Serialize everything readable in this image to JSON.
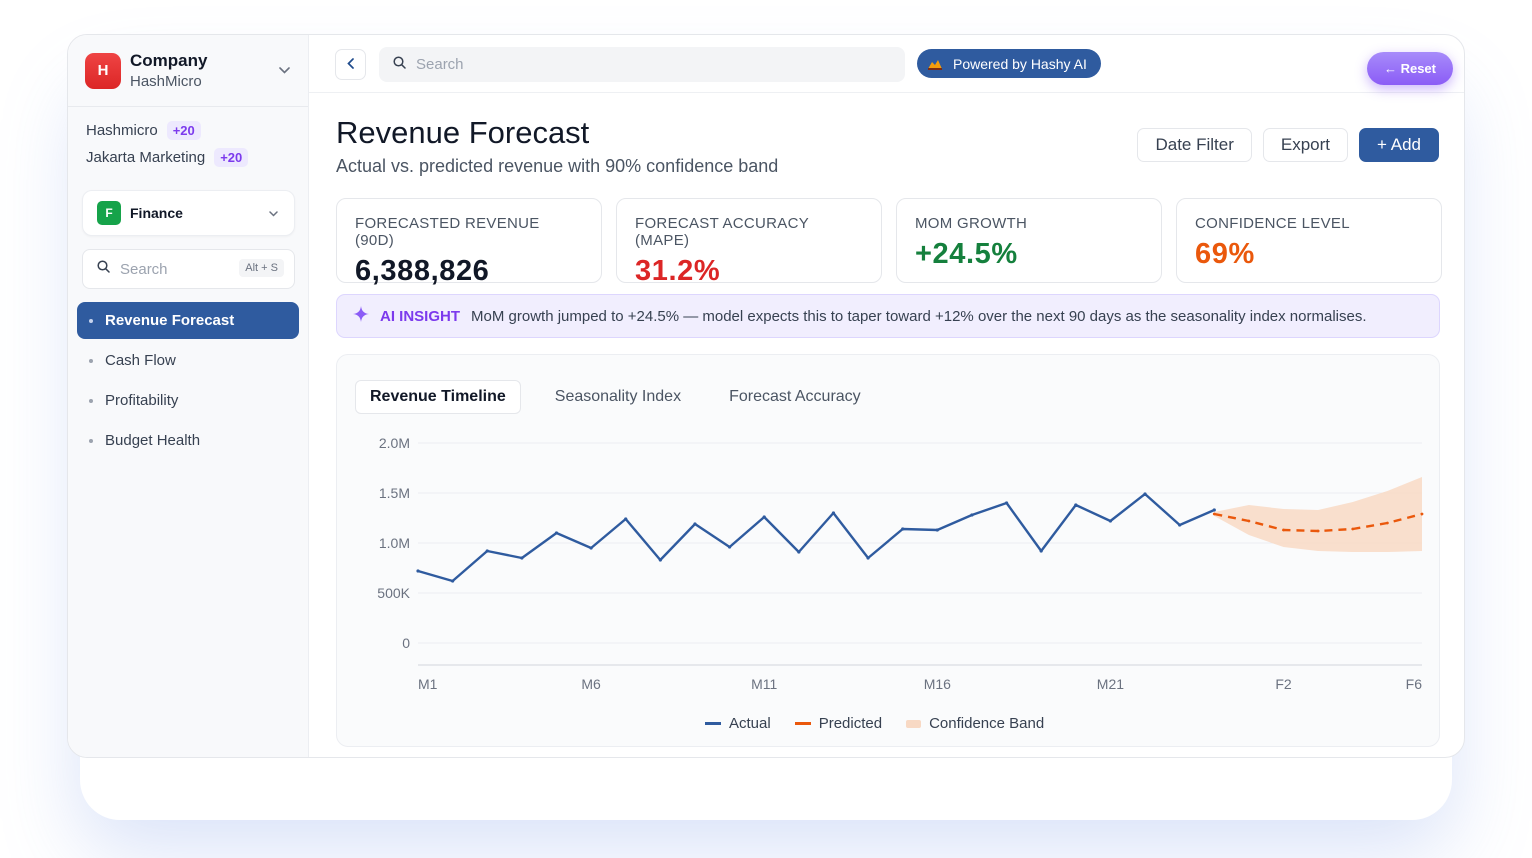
{
  "company": {
    "name": "Company",
    "sub": "HashMicro",
    "logo_letter": "H"
  },
  "orgs": [
    {
      "name": "Hashmicro",
      "badge": "+20"
    },
    {
      "name": "Jakarta Marketing",
      "badge": "+20"
    }
  ],
  "module": {
    "letter": "F",
    "label": "Finance"
  },
  "sidebar_search": {
    "placeholder": "Search",
    "shortcut": "Alt + S"
  },
  "nav": [
    {
      "label": "Revenue Forecast",
      "active": true
    },
    {
      "label": "Cash Flow",
      "active": false
    },
    {
      "label": "Profitability",
      "active": false
    },
    {
      "label": "Budget Health",
      "active": false
    }
  ],
  "topbar": {
    "search_placeholder": "Search",
    "powered": "Powered by Hashy AI",
    "reset": "← Reset"
  },
  "page": {
    "title": "Revenue Forecast",
    "subtitle": "Actual vs. predicted revenue with 90% confidence band",
    "actions": {
      "date_filter": "Date Filter",
      "export": "Export",
      "add": "+ Add"
    }
  },
  "kpis": [
    {
      "label": "FORECASTED REVENUE (90D)",
      "value": "6,388,826",
      "color": "#111827"
    },
    {
      "label": "FORECAST ACCURACY (MAPE)",
      "value": "31.2%",
      "color": "#dc2626"
    },
    {
      "label": "MOM GROWTH",
      "value": "+24.5%",
      "color": "#15803d"
    },
    {
      "label": "CONFIDENCE LEVEL",
      "value": "69%",
      "color": "#ea580c"
    }
  ],
  "insight": {
    "label": "AI INSIGHT",
    "text": "MoM growth jumped to +24.5% — model expects this to taper toward +12% over the next 90 days as the seasonality index normalises."
  },
  "chart_tabs": [
    "Revenue Timeline",
    "Seasonality Index",
    "Forecast Accuracy"
  ],
  "chart_data": {
    "type": "line",
    "ylim": [
      0,
      2000000
    ],
    "y_ticks": [
      "2.0M",
      "1.5M",
      "1.0M",
      "500K",
      "0"
    ],
    "x_tick_labels": [
      "M1",
      "M6",
      "M11",
      "M16",
      "M21",
      "F2",
      "F6"
    ],
    "series": [
      {
        "name": "Actual",
        "color": "#2f5b9f",
        "x": [
          "M1",
          "M2",
          "M3",
          "M4",
          "M5",
          "M6",
          "M7",
          "M8",
          "M9",
          "M10",
          "M11",
          "M12",
          "M13",
          "M14",
          "M15",
          "M16",
          "M17",
          "M18",
          "M19",
          "M20",
          "M21",
          "M22",
          "M23",
          "M24"
        ],
        "values": [
          720000,
          620000,
          920000,
          850000,
          1100000,
          950000,
          1240000,
          830000,
          1190000,
          960000,
          1260000,
          910000,
          1300000,
          850000,
          1140000,
          1130000,
          1280000,
          1400000,
          920000,
          1380000,
          1220000,
          1490000,
          1180000,
          1330000
        ]
      },
      {
        "name": "Predicted",
        "color": "#ea580c",
        "x": [
          "M24",
          "F1",
          "F2",
          "F3",
          "F4",
          "F5",
          "F6"
        ],
        "values": [
          1290000,
          1220000,
          1130000,
          1120000,
          1140000,
          1200000,
          1290000
        ]
      },
      {
        "name": "Confidence Band",
        "color": "#f8d9c4",
        "x": [
          "M24",
          "F1",
          "F2",
          "F3",
          "F4",
          "F5",
          "F6"
        ],
        "upper": [
          1310000,
          1380000,
          1340000,
          1330000,
          1410000,
          1520000,
          1660000
        ],
        "lower": [
          1270000,
          1080000,
          960000,
          920000,
          910000,
          910000,
          920000
        ]
      }
    ]
  }
}
